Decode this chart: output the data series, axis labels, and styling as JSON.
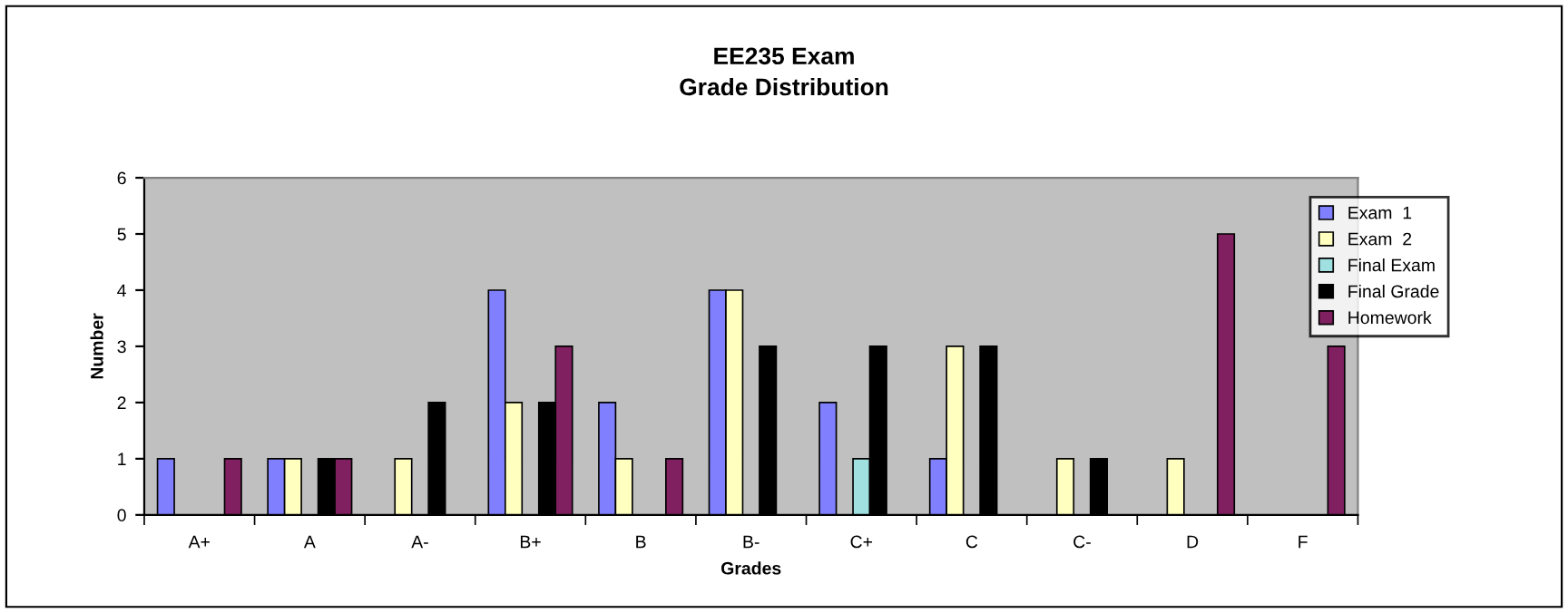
{
  "chart_data": {
    "type": "bar",
    "title": "EE235 Exam\nGrade Distribution",
    "xlabel": "Grades",
    "ylabel": "Number",
    "categories": [
      "A+",
      "A",
      "A-",
      "B+",
      "B",
      "B-",
      "C+",
      "C",
      "C-",
      "D",
      "F"
    ],
    "series": [
      {
        "name": "Exam  1",
        "color": "#8080ff",
        "values": [
          1,
          1,
          null,
          4,
          2,
          4,
          2,
          1,
          null,
          null,
          null
        ]
      },
      {
        "name": "Exam  2",
        "color": "#ffffc0",
        "values": [
          null,
          1,
          1,
          2,
          1,
          4,
          null,
          3,
          1,
          1,
          null
        ]
      },
      {
        "name": "Final Exam",
        "color": "#a0e0e0",
        "values": [
          null,
          null,
          null,
          null,
          null,
          null,
          1,
          null,
          null,
          null,
          null
        ]
      },
      {
        "name": "Final Grade",
        "color": "#000000",
        "values": [
          null,
          1,
          2,
          2,
          null,
          3,
          3,
          3,
          1,
          null,
          null
        ]
      },
      {
        "name": "Homework",
        "color": "#802060",
        "values": [
          1,
          1,
          null,
          3,
          1,
          null,
          null,
          null,
          null,
          5,
          3
        ]
      }
    ],
    "ylim": [
      0,
      6
    ],
    "yticks": [
      0,
      1,
      2,
      3,
      4,
      5,
      6
    ],
    "grid": false,
    "legend": "right"
  }
}
